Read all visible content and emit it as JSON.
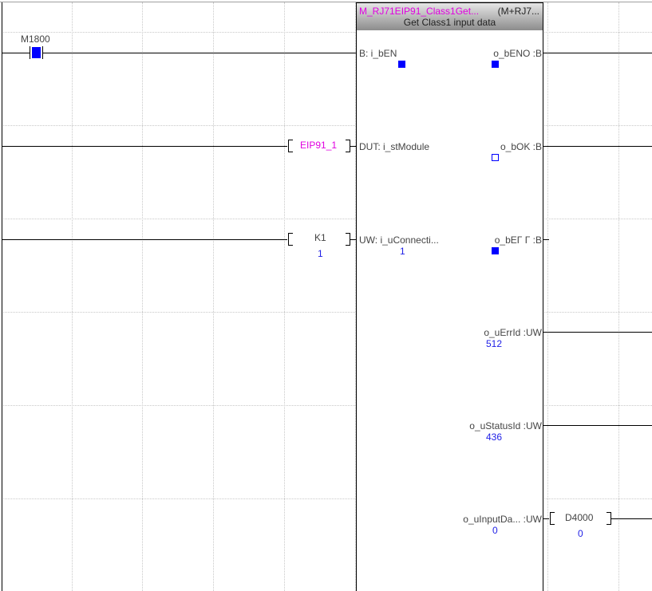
{
  "contact": {
    "device": "M1800",
    "state": "on"
  },
  "function_block": {
    "name": "M_RJ71EIP91_Class1Get...",
    "library": "(M+RJ7...",
    "comment": "Get Class1 input data",
    "inputs": [
      {
        "label": "B: i_bEN",
        "value": "on"
      },
      {
        "label": "DUT: i_stModule",
        "operand": "EIP91_1"
      },
      {
        "label": "UW: i_uConnecti...",
        "operand": "K1",
        "operand_value": "1",
        "value": "1"
      }
    ],
    "outputs": [
      {
        "label": "o_bENO :B",
        "state": "on"
      },
      {
        "label": "o_bOK :B",
        "state": "off"
      },
      {
        "label": "o_bEΓ Γ :B",
        "state": "on"
      },
      {
        "label": "o_uErrId :UW",
        "value": "512"
      },
      {
        "label": "o_uStatusId :UW",
        "value": "436"
      },
      {
        "label": "o_uInputDa... :UW",
        "value": "0",
        "operand": "D4000",
        "operand_value": "0"
      }
    ]
  },
  "colors": {
    "on": "#0000ff",
    "label_magenta": "#e000e0",
    "value_blue": "#1e1ee6"
  }
}
